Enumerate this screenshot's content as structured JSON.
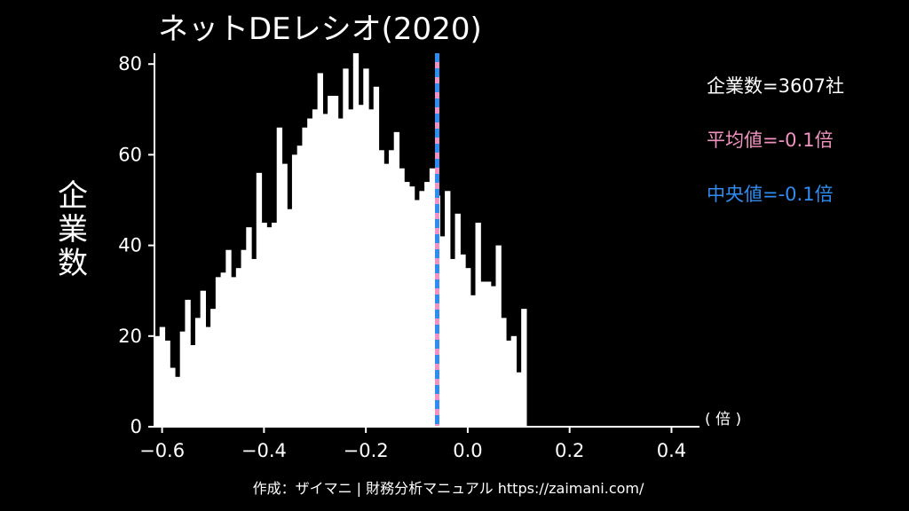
{
  "chart_data": {
    "type": "bar",
    "title": "ネットDEレシオ(2020)",
    "ylabel": "企業数",
    "xunit": "( 倍 )",
    "xlim": [
      -0.615,
      0.455
    ],
    "ylim": [
      0,
      82
    ],
    "xticks": [
      -0.6,
      -0.4,
      -0.2,
      0.0,
      0.2,
      0.4
    ],
    "xtick_labels": [
      "−0.6",
      "−0.4",
      "−0.2",
      "0.0",
      "0.2",
      "0.4"
    ],
    "yticks": [
      0,
      20,
      40,
      60,
      80
    ],
    "ytick_labels": [
      "0",
      "20",
      "40",
      "60",
      "80"
    ],
    "bin_start": -0.615,
    "bin_width": 0.01,
    "values": [
      20,
      22,
      19,
      13,
      11,
      21,
      28,
      18,
      24,
      30,
      22,
      26,
      33,
      34,
      39,
      33,
      35,
      39,
      44,
      37,
      56,
      45,
      44,
      45,
      66,
      58,
      48,
      60,
      62,
      66,
      68,
      70,
      78,
      69,
      73,
      73,
      68,
      79,
      70,
      86,
      71,
      79,
      70,
      75,
      61,
      58,
      61,
      65,
      57,
      54,
      53,
      50,
      52,
      54,
      57,
      51,
      42,
      52,
      37,
      47,
      38,
      35,
      29,
      45,
      32,
      32,
      31,
      40,
      24,
      19,
      20,
      12,
      26
    ],
    "mean": -0.06,
    "median": -0.06,
    "mean_color": "#f093c0",
    "median_color": "#2f8cf0",
    "bar_color": "#ffffff",
    "annotations": [
      {
        "text": "企業数=3607社",
        "color": "#ffffff"
      },
      {
        "text": "平均値=-0.1倍",
        "color": "#f093c0"
      },
      {
        "text": "中央値=-0.1倍",
        "color": "#2f8cf0"
      }
    ]
  },
  "footer": "作成：ザイマニ | 財務分析マニュアル https://zaimani.com/"
}
